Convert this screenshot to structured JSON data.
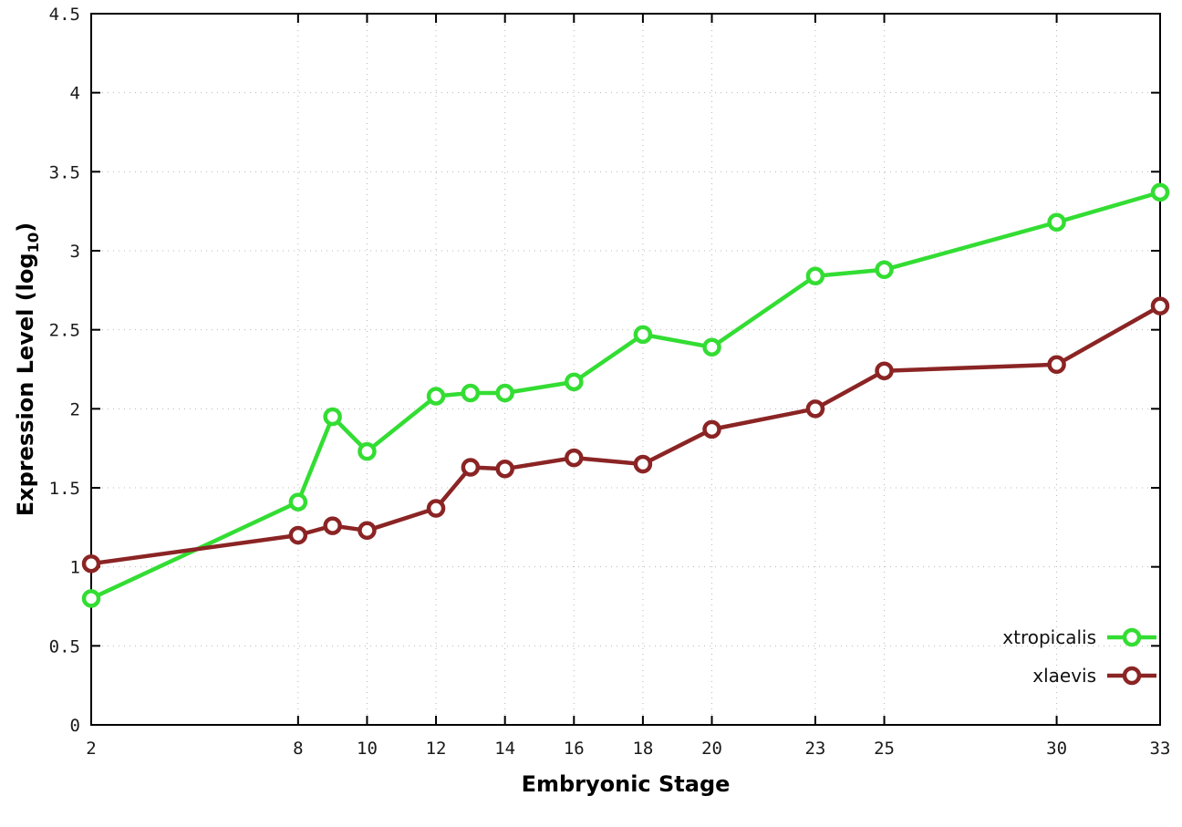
{
  "chart_data": {
    "type": "line",
    "title": "",
    "xlabel": "Embryonic Stage",
    "ylabel": "Expression Level (log10)",
    "ylabel_parts": {
      "main": "Expression Level (log",
      "sub": "10",
      "end": ")"
    },
    "x": [
      2,
      8,
      9,
      10,
      12,
      13,
      14,
      16,
      18,
      20,
      23,
      25,
      30,
      33
    ],
    "xlim": [
      2,
      33
    ],
    "ylim": [
      0,
      4.5
    ],
    "x_ticks": [
      2,
      8,
      10,
      12,
      14,
      16,
      18,
      20,
      23,
      25,
      30,
      33
    ],
    "x_tick_labels": [
      "2",
      "8",
      "10",
      "12",
      "14",
      "16",
      "18",
      "20",
      "23",
      "25",
      "30",
      "33"
    ],
    "y_ticks": [
      0,
      0.5,
      1,
      1.5,
      2,
      2.5,
      3,
      3.5,
      4,
      4.5
    ],
    "y_tick_labels": [
      "0",
      "0.5",
      "1",
      "1.5",
      "2",
      "2.5",
      "3",
      "3.5",
      "4",
      "4.5"
    ],
    "grid": true,
    "legend_position": "bottom-right",
    "series": [
      {
        "name": "xtropicalis",
        "color": "#33dd33",
        "values": [
          0.8,
          1.41,
          1.95,
          1.73,
          2.08,
          2.1,
          2.1,
          2.17,
          2.47,
          2.39,
          2.84,
          2.88,
          3.18,
          3.37
        ]
      },
      {
        "name": "xlaevis",
        "color": "#8b2424",
        "values": [
          1.02,
          1.2,
          1.26,
          1.23,
          1.37,
          1.63,
          1.62,
          1.69,
          1.65,
          1.87,
          2.0,
          2.24,
          2.28,
          2.65
        ]
      }
    ],
    "style": {
      "grid_color": "#b8b8b8",
      "border_color": "#000000",
      "tick_label_color": "#1a1a1a",
      "marker_fill": "#ffffff"
    }
  }
}
